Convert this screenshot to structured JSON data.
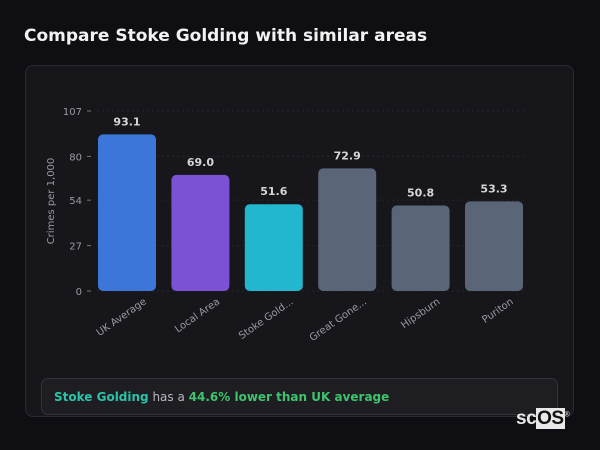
{
  "title": "Compare Stoke Golding with similar areas",
  "chart_data": {
    "type": "bar",
    "categories": [
      "UK Average",
      "Local Area",
      "Stoke Gold...",
      "Great Gone...",
      "Hipsburn",
      "Puriton"
    ],
    "values": [
      93.1,
      69.0,
      51.6,
      72.9,
      50.8,
      53.3
    ],
    "value_labels": [
      "93.1",
      "69.0",
      "51.6",
      "72.9",
      "50.8",
      "53.3"
    ],
    "colors": [
      "#3b76d8",
      "#7b52d3",
      "#22b6cf",
      "#5a6577",
      "#5a6577",
      "#5a6577"
    ],
    "ylabel": "Crimes per 1,000",
    "xlabel": "",
    "ylim": [
      0,
      107
    ],
    "yticks": [
      "0",
      "27",
      "54",
      "80",
      "107"
    ],
    "grid": true
  },
  "summary": {
    "area": "Stoke Golding",
    "middle": " has a ",
    "comparison": "44.6% lower than UK average"
  },
  "logo": {
    "text_a": "sc",
    "text_b": "OS",
    "mark": "®"
  }
}
